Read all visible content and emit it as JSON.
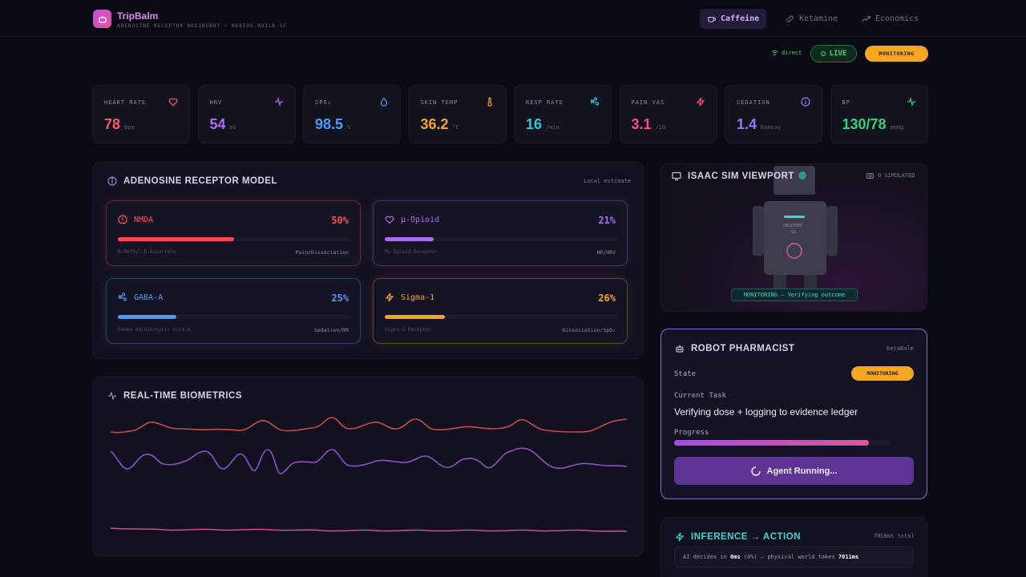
{
  "header": {
    "brand": "TripBalm",
    "subtitle": "ADENOSINE RECEPTOR DOSINGBOT · NEBIUS.BUILD SF",
    "nav": [
      {
        "label": "Caffeine",
        "icon": "coffee-icon",
        "active": true
      },
      {
        "label": "Ketamine",
        "icon": "pill-icon",
        "active": false
      },
      {
        "label": "Economics",
        "icon": "trending-up-icon",
        "active": false
      }
    ]
  },
  "status": {
    "direct": "direct",
    "live": "LIVE",
    "monitoring": "MONITORING"
  },
  "vitals": [
    {
      "label": "HEART RATE",
      "value": "78",
      "unit": "bpm",
      "color": "#ff5a6a",
      "icon": "heart-icon"
    },
    {
      "label": "HRV",
      "value": "54",
      "unit": "ms",
      "color": "#b06cf0",
      "icon": "activity-icon"
    },
    {
      "label": "SPO₂",
      "value": "98.5",
      "unit": "%",
      "color": "#4a9bff",
      "icon": "droplet-icon"
    },
    {
      "label": "SKIN TEMP",
      "value": "36.2",
      "unit": "°C",
      "color": "#f5a623",
      "icon": "thermometer-icon"
    },
    {
      "label": "RESP RATE",
      "value": "16",
      "unit": "/min",
      "color": "#2fc7d6",
      "icon": "wind-icon"
    },
    {
      "label": "PAIN VAS",
      "value": "3.1",
      "unit": "/10",
      "color": "#ff4a7a",
      "icon": "zap-icon"
    },
    {
      "label": "SEDATION",
      "value": "1.4",
      "unit": "Ramsay",
      "color": "#8a7cf5",
      "icon": "info-icon"
    },
    {
      "label": "BP",
      "value": "130/78",
      "unit": "mmHg",
      "color": "#2ed37a",
      "icon": "activity-icon"
    }
  ],
  "receptor_model": {
    "title": "ADENOSINE RECEPTOR MODEL",
    "note": "Local estimate",
    "receptors": [
      {
        "name": "NMDA",
        "full": "N-Methyl-D-Aspartate",
        "effect": "Pain/Dissociation",
        "percent_label": "50%",
        "fraction": 0.5,
        "color": "#ff4a55",
        "icon": "alert-circle-icon"
      },
      {
        "name": "μ-Opioid",
        "full": "Mu-Opioid Receptor",
        "effect": "HR/HRV",
        "percent_label": "21%",
        "fraction": 0.21,
        "color": "#b06cf0",
        "icon": "heart-icon"
      },
      {
        "name": "GABA-A",
        "full": "Gamma-Aminobutyric Acid A",
        "effect": "Sedation/RR",
        "percent_label": "25%",
        "fraction": 0.25,
        "color": "#4a9bff",
        "icon": "wind-icon"
      },
      {
        "name": "Sigma-1",
        "full": "Sigma-1 Receptor",
        "effect": "Dissociation/SpO₂",
        "percent_label": "26%",
        "fraction": 0.26,
        "color": "#f5a623",
        "icon": "zap-icon"
      }
    ]
  },
  "biometrics": {
    "title": "REAL-TIME BIOMETRICS",
    "series_colors": [
      "#e0504f",
      "#9b59d6",
      "#e0559a"
    ]
  },
  "isaac": {
    "title": "ISAAC SIM VIEWPORT",
    "note": "0 SIMULATED",
    "robot_label": "UNSITRED",
    "robot_label2": "GS",
    "status": "MONITORING — Verifying outcome"
  },
  "robot_pharmacist": {
    "title": "ROBOT PHARMACIST",
    "note": "KetaBalm",
    "state_label": "State",
    "state_value": "MONITORING",
    "task_label": "Current Task",
    "task": "Verifying dose + logging to evidence ledger",
    "progress_label": "Progress",
    "progress": 0.9,
    "button": "Agent Running..."
  },
  "inference": {
    "title": "INFERENCE → ACTION",
    "total": "7016ms total",
    "text_pre": "AI decides in ",
    "decide": "0ms",
    "text_mid": " (0%) — physical world takes ",
    "physical": "7011ms"
  }
}
